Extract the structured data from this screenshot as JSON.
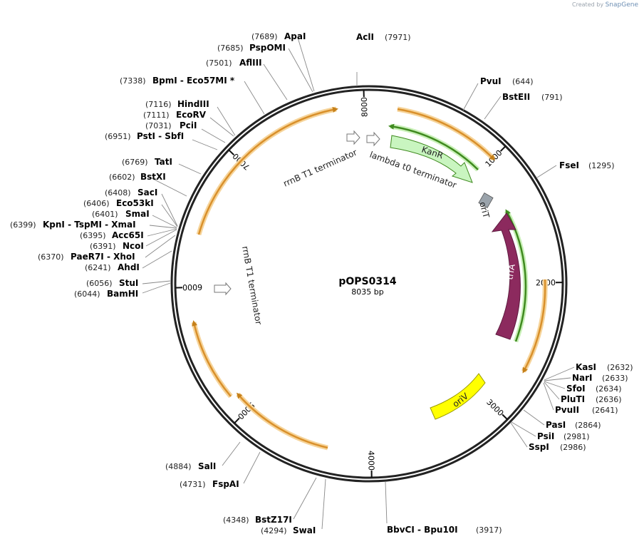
{
  "credit": {
    "prefix": "Created by",
    "brand": "SnapGene"
  },
  "plasmid": {
    "name": "pOPS0314",
    "size_label": "8035 bp",
    "length": 8035
  },
  "ticks": [
    {
      "pos": 1000,
      "label": "1000"
    },
    {
      "pos": 2000,
      "label": "2000"
    },
    {
      "pos": 3000,
      "label": "3000"
    },
    {
      "pos": 4000,
      "label": "4000"
    },
    {
      "pos": 5000,
      "label": "5000"
    },
    {
      "pos": 6000,
      "label": "6000"
    },
    {
      "pos": 7000,
      "label": "7000"
    },
    {
      "pos": 8000,
      "label": "8000"
    }
  ],
  "sites": [
    {
      "name": "AclI",
      "pos": "(7971)"
    },
    {
      "name": "ApaI",
      "pos": "(7689)"
    },
    {
      "name": "PspOMI",
      "pos": "(7685)"
    },
    {
      "name": "AflIII",
      "pos": "(7501)"
    },
    {
      "name": "BpmI - Eco57MI *",
      "pos": "(7338)"
    },
    {
      "name": "HindIII",
      "pos": "(7116)"
    },
    {
      "name": "EcoRV",
      "pos": "(7111)"
    },
    {
      "name": "PciI",
      "pos": "(7031)"
    },
    {
      "name": "PstI - SbfI",
      "pos": "(6951)"
    },
    {
      "name": "TatI",
      "pos": "(6769)"
    },
    {
      "name": "BstXI",
      "pos": "(6602)"
    },
    {
      "name": "SacI",
      "pos": "(6408)"
    },
    {
      "name": "Eco53kI",
      "pos": "(6406)"
    },
    {
      "name": "SmaI",
      "pos": "(6401)"
    },
    {
      "name": "KpnI - TspMI - XmaI",
      "pos": "(6399)"
    },
    {
      "name": "Acc65I",
      "pos": "(6395)"
    },
    {
      "name": "NcoI",
      "pos": "(6391)"
    },
    {
      "name": "PaeR7I - XhoI",
      "pos": "(6370)"
    },
    {
      "name": "AhdI",
      "pos": "(6241)"
    },
    {
      "name": "StuI",
      "pos": "(6056)"
    },
    {
      "name": "BamHI",
      "pos": "(6044)"
    },
    {
      "name": "SalI",
      "pos": "(4884)"
    },
    {
      "name": "FspAI",
      "pos": "(4731)"
    },
    {
      "name": "BstZ17I",
      "pos": "(4348)"
    },
    {
      "name": "SwaI",
      "pos": "(4294)"
    },
    {
      "name": "BbvCI - Bpu10I",
      "pos": "(3917)"
    },
    {
      "name": "PvuI",
      "pos": "(644)"
    },
    {
      "name": "BstEII",
      "pos": "(791)"
    },
    {
      "name": "FseI",
      "pos": "(1295)"
    },
    {
      "name": "KasI",
      "pos": "(2632)"
    },
    {
      "name": "NarI",
      "pos": "(2633)"
    },
    {
      "name": "SfoI",
      "pos": "(2634)"
    },
    {
      "name": "PluTI",
      "pos": "(2636)"
    },
    {
      "name": "PvuII",
      "pos": "(2641)"
    },
    {
      "name": "PasI",
      "pos": "(2864)"
    },
    {
      "name": "PsiI",
      "pos": "(2981)"
    },
    {
      "name": "SspI",
      "pos": "(2986)"
    }
  ],
  "features": {
    "kanr": "KanR",
    "trfa": "trfA",
    "oriv": "oriV",
    "orit": "oriT",
    "rrnb_top": "rrnB T1 terminator",
    "lambda": "lambda t0 terminator",
    "rrnb_left": "rrnB T1 terminator"
  },
  "colors": {
    "kanr": "#c9f5c0",
    "trfa": "#8c2a5e",
    "oriv": "#ffff00",
    "orit": "#9aa3ab",
    "orf": "#e4a332",
    "orf_green": "#7bd35a"
  }
}
